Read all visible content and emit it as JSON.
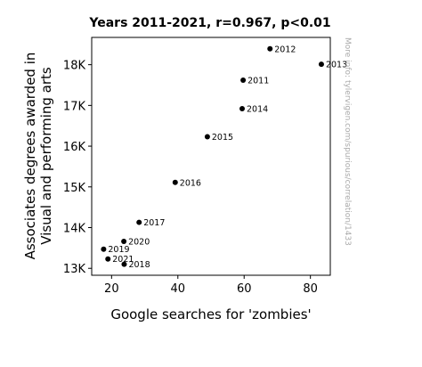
{
  "chart_data": {
    "type": "scatter",
    "title": "Years 2011-2021, r=0.967, p<0.01",
    "xlabel": "Google searches for 'zombies'",
    "ylabel_lines": [
      "Associates degrees awarded in",
      "Visual and performing arts"
    ],
    "xlim": [
      14,
      86
    ],
    "ylim": [
      12830,
      18670
    ],
    "x_ticks": [
      20,
      40,
      60,
      80
    ],
    "x_tick_labels": [
      "20",
      "40",
      "60",
      "80"
    ],
    "y_ticks": [
      13000,
      14000,
      15000,
      16000,
      17000,
      18000
    ],
    "y_tick_labels": [
      "13K",
      "14K",
      "15K",
      "16K",
      "17K",
      "18K"
    ],
    "grid": false,
    "points": [
      {
        "label": "2011",
        "x": 59.7,
        "y": 17620
      },
      {
        "label": "2012",
        "x": 67.8,
        "y": 18390
      },
      {
        "label": "2013",
        "x": 83.3,
        "y": 18010
      },
      {
        "label": "2014",
        "x": 59.4,
        "y": 16920
      },
      {
        "label": "2015",
        "x": 48.9,
        "y": 16230
      },
      {
        "label": "2016",
        "x": 39.2,
        "y": 15110
      },
      {
        "label": "2017",
        "x": 28.3,
        "y": 14130
      },
      {
        "label": "2018",
        "x": 23.8,
        "y": 13100
      },
      {
        "label": "2019",
        "x": 17.6,
        "y": 13470
      },
      {
        "label": "2020",
        "x": 23.7,
        "y": 13660
      },
      {
        "label": "2021",
        "x": 18.9,
        "y": 13230
      }
    ],
    "watermark": "More info: tylervigen.com/spurious/correlation/1433"
  }
}
